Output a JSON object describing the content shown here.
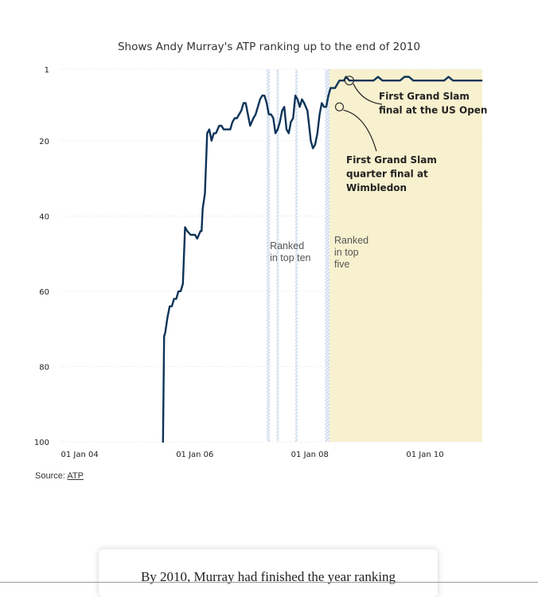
{
  "chart_data": {
    "type": "line",
    "title": "Shows Andy Murray's ATP ranking up to the end of 2010",
    "xlabel": "",
    "ylabel": "",
    "y_inverted": true,
    "ylim": [
      1,
      100
    ],
    "yticks": [
      "1",
      "20",
      "40",
      "60",
      "80",
      "100"
    ],
    "ytick_values": [
      1,
      20,
      40,
      60,
      80,
      100
    ],
    "xlim": [
      "2003-09-01",
      "2010-12-31"
    ],
    "xticks": [
      "01 Jan 04",
      "01 Jan 06",
      "01 Jan 08",
      "01 Jan 10"
    ],
    "xtick_values": [
      "2004-01-01",
      "2006-01-01",
      "2008-01-01",
      "2010-01-01"
    ],
    "grid": true,
    "colors": {
      "line": "#0d3358",
      "top_ten_band": "#b3c8e3",
      "top_five_band": "#f8f1cf",
      "top_five_edge": "#b8cce4"
    },
    "bands": [
      {
        "label_lines": [
          "Ranked",
          "in top ten"
        ],
        "start": "2007-04-02",
        "end": "2007-04-23"
      },
      {
        "label_lines": [],
        "start": "2007-06-04",
        "end": "2007-06-18"
      },
      {
        "label_lines": [],
        "start": "2007-10-01",
        "end": "2007-10-15"
      },
      {
        "label_lines": [
          "Ranked",
          "in top",
          "five"
        ],
        "start": "2008-04-07",
        "end": "2008-05-05"
      },
      {
        "label_lines": [],
        "start": "2008-05-05",
        "end": "2010-12-31"
      }
    ],
    "annotations": [
      {
        "lines": [
          "First Grand Slam",
          "final at the US Open"
        ],
        "x": "2008-09-08",
        "y": 4
      },
      {
        "lines": [
          "First Grand Slam",
          "quarter final at",
          "Wimbledon"
        ],
        "x": "2008-07-07",
        "y": 11
      }
    ],
    "series": [
      {
        "x": [
          "2005-06-13",
          "2005-06-20",
          "2005-06-27",
          "2005-07-11",
          "2005-07-25",
          "2005-08-08",
          "2005-08-22",
          "2005-09-05",
          "2005-09-19",
          "2005-10-03",
          "2005-10-17",
          "2005-10-31",
          "2005-11-14",
          "2005-12-05",
          "2006-01-02",
          "2006-01-16",
          "2006-02-06",
          "2006-02-13",
          "2006-02-20",
          "2006-03-06",
          "2006-03-20",
          "2006-04-03",
          "2006-04-17",
          "2006-05-01",
          "2006-05-15",
          "2006-06-05",
          "2006-06-19",
          "2006-07-03",
          "2006-07-17",
          "2006-07-31",
          "2006-08-14",
          "2006-08-28",
          "2006-09-11",
          "2006-09-25",
          "2006-10-09",
          "2006-10-23",
          "2006-11-06",
          "2006-11-20",
          "2006-12-18",
          "2007-01-08",
          "2007-01-22",
          "2007-02-05",
          "2007-02-19",
          "2007-03-05",
          "2007-03-19",
          "2007-04-02",
          "2007-04-16",
          "2007-04-30",
          "2007-05-14",
          "2007-05-28",
          "2007-06-11",
          "2007-06-25",
          "2007-07-09",
          "2007-07-23",
          "2007-08-06",
          "2007-08-20",
          "2007-09-03",
          "2007-09-17",
          "2007-10-01",
          "2007-10-15",
          "2007-10-29",
          "2007-11-12",
          "2007-11-26",
          "2007-12-17",
          "2008-01-07",
          "2008-01-21",
          "2008-02-04",
          "2008-02-18",
          "2008-03-03",
          "2008-03-17",
          "2008-03-31",
          "2008-04-14",
          "2008-04-28",
          "2008-05-12",
          "2008-05-26",
          "2008-06-09",
          "2008-06-23",
          "2008-07-07",
          "2008-07-21",
          "2008-08-04",
          "2008-08-18",
          "2008-09-08",
          "2008-09-22",
          "2008-10-20",
          "2008-11-17",
          "2008-12-15",
          "2009-01-12",
          "2009-02-09",
          "2009-03-09",
          "2009-04-06",
          "2009-05-04",
          "2009-06-01",
          "2009-06-29",
          "2009-07-27",
          "2009-08-24",
          "2009-09-21",
          "2009-10-19",
          "2009-11-16",
          "2009-12-14",
          "2010-01-11",
          "2010-02-08",
          "2010-03-08",
          "2010-04-05",
          "2010-05-03",
          "2010-05-31",
          "2010-06-28",
          "2010-07-26",
          "2010-08-23",
          "2010-09-20",
          "2010-10-18",
          "2010-11-15",
          "2010-12-13",
          "2010-12-27"
        ],
        "values": [
          100,
          72,
          71,
          67,
          64,
          64,
          62,
          62,
          60,
          60,
          58,
          43,
          44,
          45,
          45,
          46,
          44,
          44,
          38,
          34,
          18,
          17,
          20,
          18,
          18,
          16,
          16,
          17,
          17,
          17,
          17,
          15,
          14,
          14,
          13,
          12,
          10,
          10,
          16,
          14,
          13,
          11,
          9,
          8,
          8,
          10,
          13,
          13,
          14,
          18,
          17,
          15,
          12,
          11,
          17,
          18,
          15,
          14,
          8,
          9,
          11,
          9,
          10,
          12,
          20,
          22,
          21,
          18,
          13,
          10,
          11,
          11,
          8,
          6,
          6,
          6,
          5,
          4,
          4,
          4,
          3,
          4,
          4,
          4,
          4,
          4,
          4,
          4,
          3,
          4,
          4,
          4,
          4,
          4,
          3,
          3,
          4,
          4,
          4,
          4,
          4,
          4,
          4,
          4,
          3,
          4,
          4,
          4,
          4,
          4,
          4,
          4,
          4
        ]
      }
    ]
  },
  "source": {
    "label": "Source:",
    "link": "ATP"
  },
  "card": {
    "text": "By 2010, Murray had finished the year ranking"
  }
}
